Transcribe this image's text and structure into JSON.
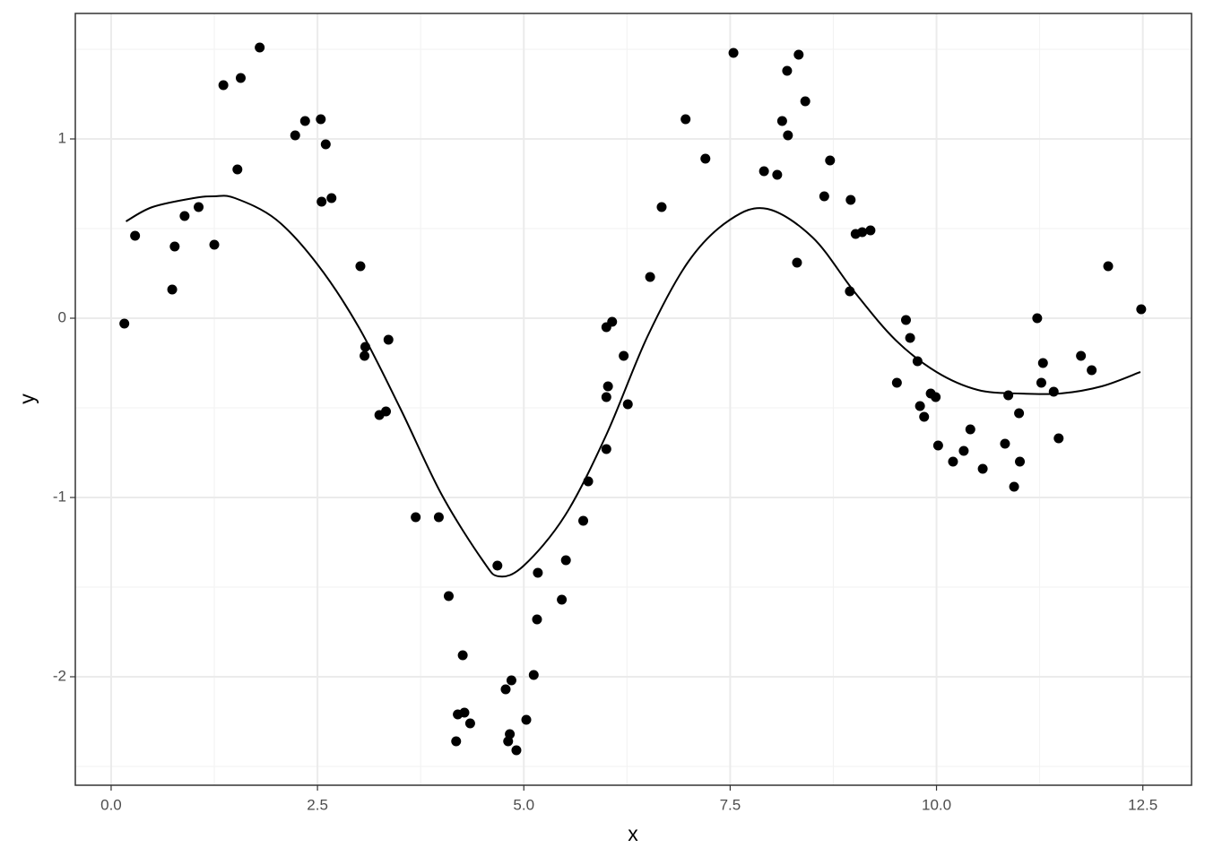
{
  "chart_data": {
    "type": "scatter",
    "x_label": "x",
    "y_label": "y",
    "points": {
      "color": "#000000",
      "x": [
        0.16,
        0.29,
        0.74,
        0.77,
        0.89,
        1.06,
        1.25,
        1.36,
        1.53,
        1.57,
        1.8,
        2.23,
        2.35,
        2.54,
        2.55,
        2.6,
        2.67,
        3.02,
        3.08,
        3.07,
        3.25,
        3.33,
        3.36,
        3.69,
        3.97,
        4.09,
        4.18,
        4.2,
        4.26,
        4.28,
        4.35,
        4.68,
        4.78,
        4.81,
        4.83,
        4.85,
        4.91,
        5.03,
        5.12,
        5.16,
        5.17,
        5.46,
        5.51,
        5.72,
        5.78,
        6.0,
        6.0,
        6.0,
        6.02,
        6.07,
        6.21,
        6.26,
        6.53,
        6.67,
        6.96,
        7.2,
        7.54,
        7.91,
        8.07,
        8.13,
        8.19,
        8.2,
        8.31,
        8.33,
        8.41,
        8.64,
        8.71,
        8.95,
        8.96,
        9.02,
        9.1,
        9.2,
        9.52,
        9.63,
        9.68,
        9.77,
        9.8,
        9.85,
        9.93,
        9.99,
        10.02,
        10.2,
        10.33,
        10.41,
        10.56,
        10.83,
        10.87,
        10.94,
        11.0,
        11.01,
        11.22,
        11.27,
        11.29,
        11.42,
        11.48,
        11.75,
        11.88,
        12.08,
        12.48
      ],
      "y": [
        -0.03,
        0.46,
        0.16,
        0.4,
        0.57,
        0.62,
        0.41,
        1.3,
        0.83,
        1.34,
        1.51,
        1.02,
        1.1,
        1.11,
        0.65,
        0.97,
        0.67,
        0.29,
        -0.16,
        -0.21,
        -0.54,
        -0.52,
        -0.12,
        -1.11,
        -1.11,
        -1.55,
        -2.36,
        -2.21,
        -1.88,
        -2.2,
        -2.26,
        -1.38,
        -2.07,
        -2.36,
        -2.32,
        -2.02,
        -2.41,
        -2.24,
        -1.99,
        -1.68,
        -1.42,
        -1.57,
        -1.35,
        -1.13,
        -0.91,
        -0.73,
        -0.44,
        -0.05,
        -0.38,
        -0.02,
        -0.21,
        -0.48,
        0.23,
        0.62,
        1.11,
        0.89,
        1.48,
        0.82,
        0.8,
        1.1,
        1.38,
        1.02,
        0.31,
        1.47,
        1.21,
        0.68,
        0.88,
        0.15,
        0.66,
        0.47,
        0.48,
        0.49,
        -0.36,
        -0.01,
        -0.11,
        -0.24,
        -0.49,
        -0.55,
        -0.42,
        -0.44,
        -0.71,
        -0.8,
        -0.74,
        -0.62,
        -0.84,
        -0.7,
        -0.43,
        -0.94,
        -0.53,
        -0.8,
        0.0,
        -0.36,
        -0.25,
        -0.41,
        -0.67,
        -0.21,
        -0.29,
        0.29,
        0.05
      ]
    },
    "line": {
      "color": "#000000",
      "x": [
        0.18,
        0.5,
        1.0,
        1.25,
        1.5,
        2.0,
        2.5,
        3.0,
        3.5,
        4.0,
        4.5,
        4.7,
        5.0,
        5.5,
        6.0,
        6.5,
        7.0,
        7.5,
        7.95,
        8.5,
        9.0,
        9.5,
        10.0,
        10.5,
        11.0,
        11.5,
        12.0,
        12.47
      ],
      "y": [
        0.54,
        0.62,
        0.67,
        0.68,
        0.67,
        0.55,
        0.3,
        -0.05,
        -0.5,
        -0.98,
        -1.35,
        -1.44,
        -1.38,
        -1.1,
        -0.65,
        -0.1,
        0.32,
        0.55,
        0.61,
        0.45,
        0.15,
        -0.12,
        -0.3,
        -0.4,
        -0.42,
        -0.42,
        -0.38,
        -0.3
      ]
    },
    "xlim": [
      -0.434,
      13.09
    ],
    "ylim": [
      -2.605,
      1.7
    ],
    "xticks": [
      {
        "value": 0,
        "label": "0.0"
      },
      2.5,
      {
        "value": 5,
        "label": "5.0"
      },
      7.5,
      {
        "value": 10,
        "label": "10.0"
      },
      12.5
    ],
    "yticks": [
      -2,
      -1,
      0,
      1
    ],
    "x_minor_grid": [
      1.25,
      3.75,
      6.25,
      8.75,
      11.25
    ],
    "y_minor_grid": [
      -2.5,
      -1.5,
      -0.5,
      0.5,
      1.5
    ],
    "grid": true
  }
}
